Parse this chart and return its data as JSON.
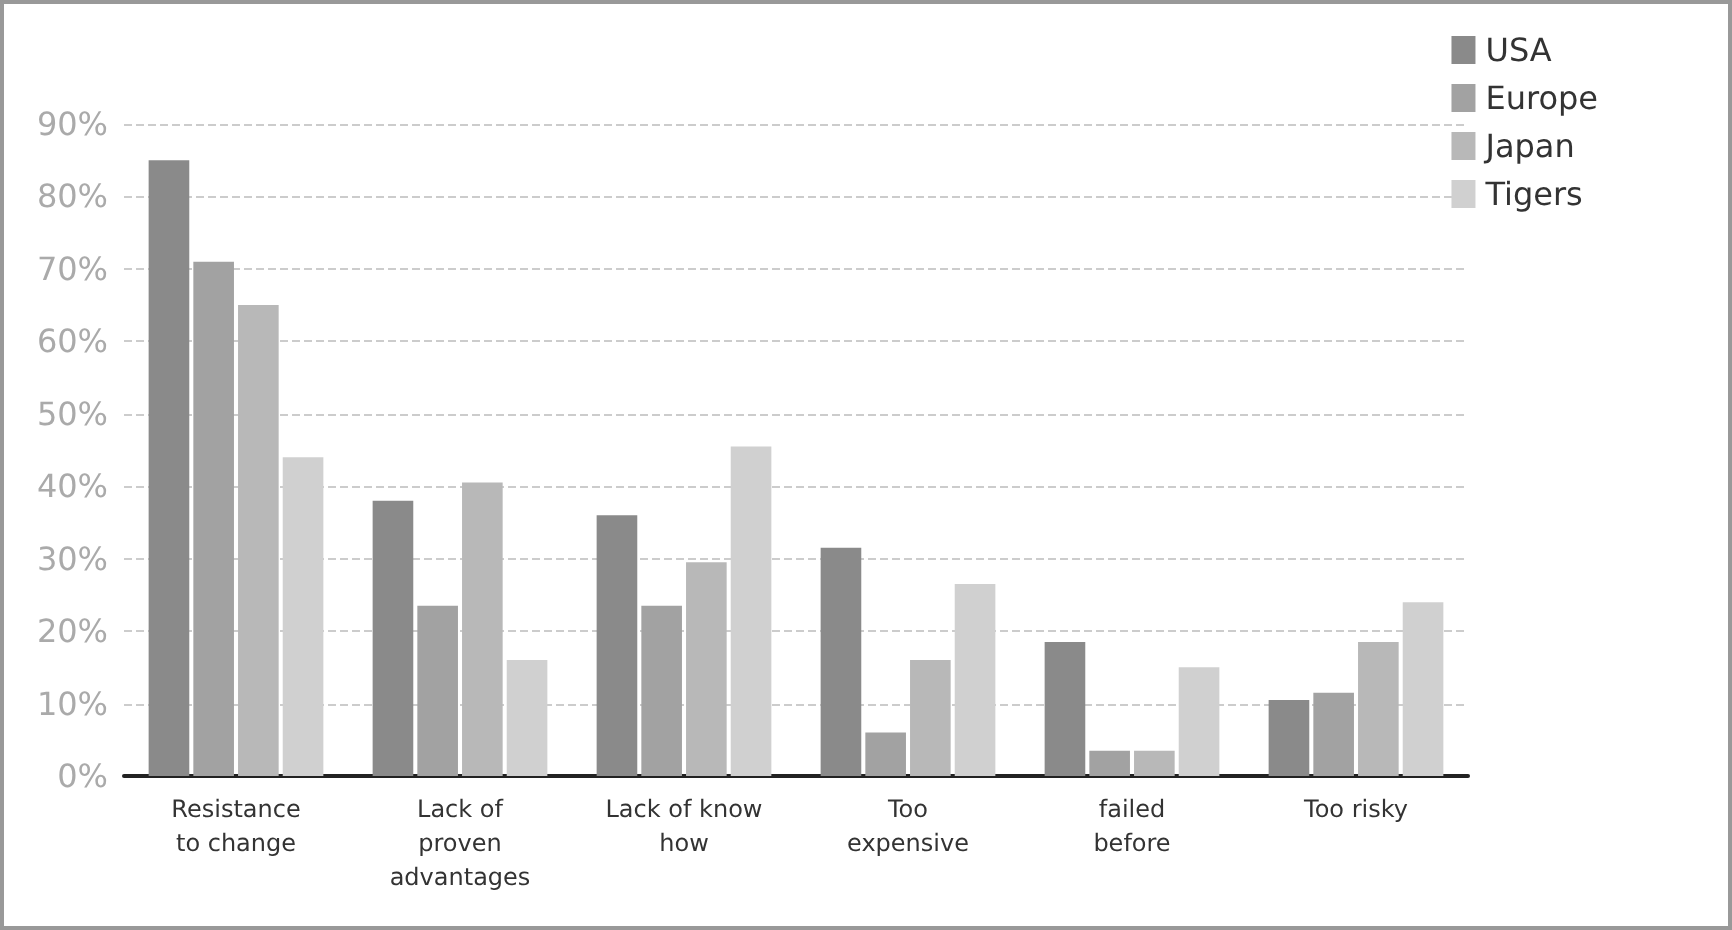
{
  "chart_data": {
    "type": "bar",
    "categories": [
      "Resistance\nto change",
      "Lack of\nproven\nadvantages",
      "Lack of know\nhow",
      "Too\nexpensive",
      "failed\nbefore",
      "Too risky"
    ],
    "series": [
      {
        "name": "USA",
        "color": "#8a8a8a",
        "values": [
          85,
          38,
          36,
          31.5,
          18.5,
          10.5
        ]
      },
      {
        "name": "Europe",
        "color": "#a2a2a2",
        "values": [
          71,
          23.5,
          23.5,
          6,
          3.5,
          11.5
        ]
      },
      {
        "name": "Japan",
        "color": "#b8b8b8",
        "values": [
          65,
          40.5,
          29.5,
          16,
          3.5,
          18.5
        ]
      },
      {
        "name": "Tigers",
        "color": "#d0d0d0",
        "values": [
          44,
          16,
          45.5,
          26.5,
          15,
          24
        ]
      }
    ],
    "ylim": [
      0,
      90
    ],
    "yticks": [
      {
        "value": 0,
        "label": "0%"
      },
      {
        "value": 10,
        "label": "10%"
      },
      {
        "value": 20,
        "label": "20%"
      },
      {
        "value": 30,
        "label": "30%"
      },
      {
        "value": 40,
        "label": "40%"
      },
      {
        "value": 50,
        "label": "50%"
      },
      {
        "value": 60,
        "label": "60%"
      },
      {
        "value": 70,
        "label": "70%"
      },
      {
        "value": 80,
        "label": "80%"
      },
      {
        "value": 90,
        "label": "90%"
      }
    ],
    "grid": "y",
    "legend": "top right"
  }
}
